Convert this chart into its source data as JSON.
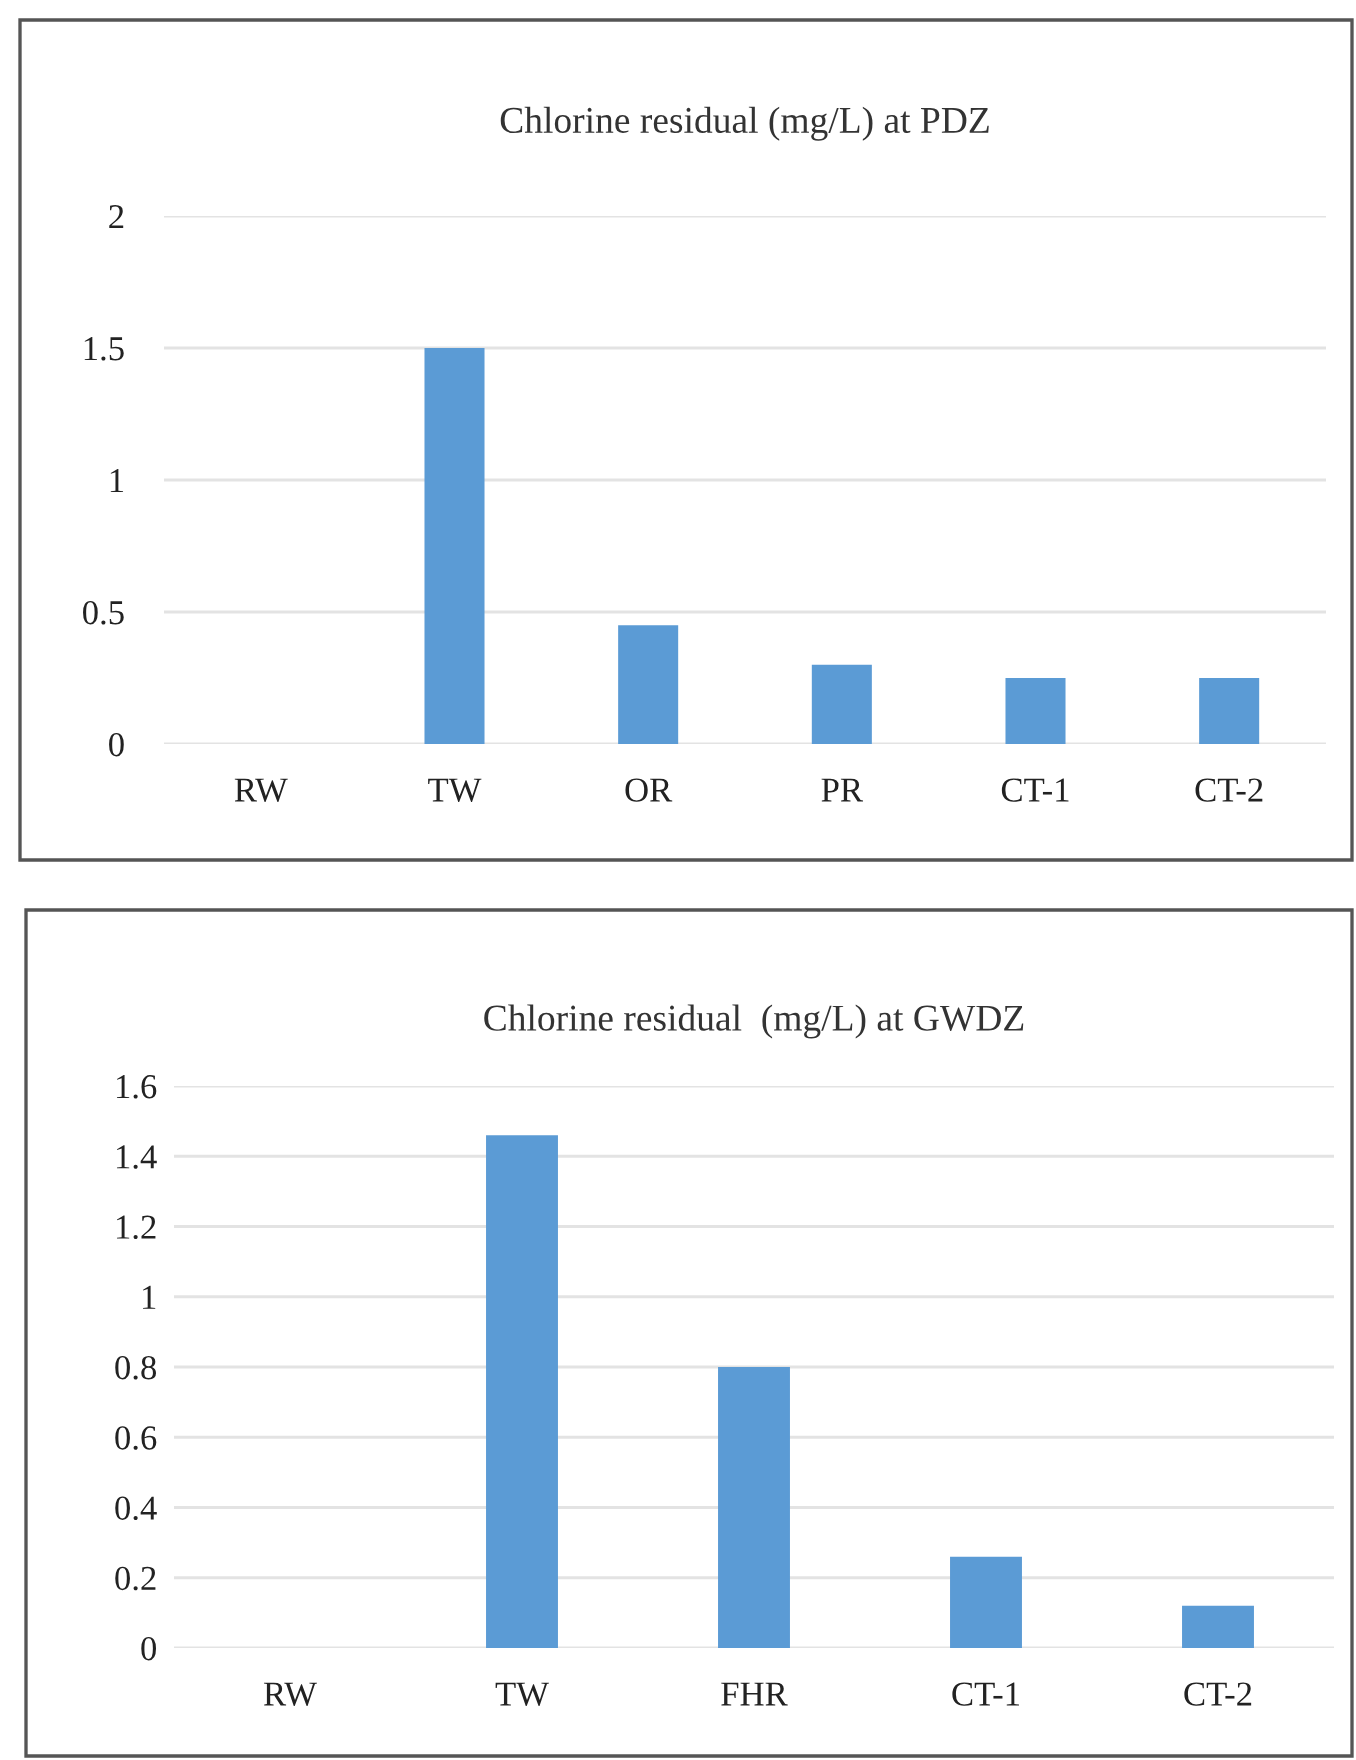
{
  "chart_data": [
    {
      "type": "bar",
      "title": "Chlorine residual (mg/L) at PDZ",
      "categories": [
        "RW",
        "TW",
        "OR",
        "PR",
        "CT-1",
        "CT-2"
      ],
      "values": [
        0,
        1.5,
        0.45,
        0.3,
        0.25,
        0.25
      ],
      "color": "#5b9bd5",
      "ylim": [
        0,
        2
      ],
      "yticks": [
        0,
        0.5,
        1,
        1.5,
        2
      ],
      "grid": "y",
      "legend": false
    },
    {
      "type": "bar",
      "title": "Chlorine residual  (mg/L) at GWDZ",
      "categories": [
        "RW",
        "TW",
        "FHR",
        "CT-1",
        "CT-2"
      ],
      "values": [
        0,
        1.46,
        0.8,
        0.26,
        0.12
      ],
      "color": "#5b9bd5",
      "ylim": [
        0,
        1.6
      ],
      "yticks": [
        0,
        0.2,
        0.4,
        0.6,
        0.8,
        1,
        1.2,
        1.4,
        1.6
      ],
      "grid": "y",
      "legend": false
    }
  ]
}
